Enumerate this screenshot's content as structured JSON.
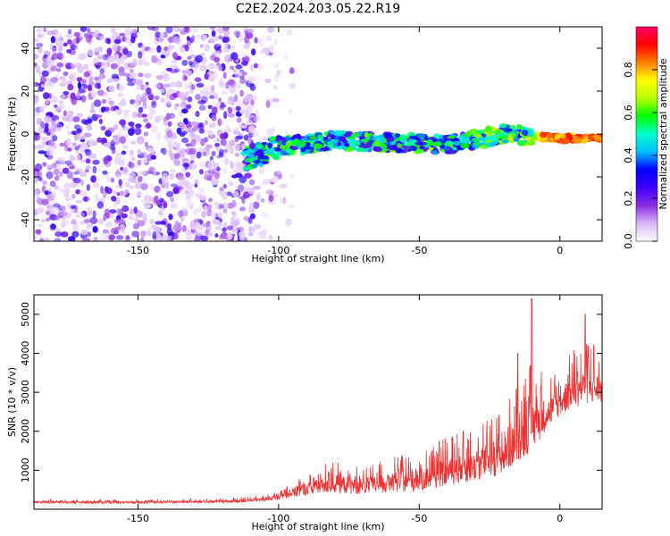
{
  "title": "C2E2.2024.203.05.22.R19",
  "chart_data": [
    {
      "type": "heatmap",
      "xlabel": "Height of straight line (km)",
      "ylabel": "Frequency (Hz)",
      "xlim": [
        -187,
        15
      ],
      "ylim": [
        -50,
        50
      ],
      "x_ticks": [
        -150,
        -100,
        -50,
        0
      ],
      "y_ticks": [
        -40,
        -20,
        0,
        20,
        40
      ],
      "colorbar": {
        "label": "Normalized spectral amplitude",
        "range": [
          0,
          1
        ],
        "ticks": [
          0.0,
          0.2,
          0.4,
          0.6,
          0.8
        ],
        "colors": [
          "#ffffff",
          "#d9b6f7",
          "#8a2be2",
          "#3f00ff",
          "#0000ff",
          "#00bfff",
          "#00ffcc",
          "#00ff00",
          "#b6ff00",
          "#ffff00",
          "#ff7f00",
          "#ff0000",
          "#ff0066"
        ]
      },
      "regions": [
        {
          "name": "noise",
          "x_range": [
            -187,
            -108
          ],
          "y_range": [
            -50,
            50
          ],
          "amplitude_range": [
            0.05,
            0.3
          ]
        },
        {
          "name": "sparse-noise",
          "x_range": [
            -108,
            -95
          ],
          "y_range": [
            -50,
            50
          ],
          "amplitude_range": [
            0.03,
            0.15
          ]
        },
        {
          "name": "signal-band",
          "x_range": [
            -112,
            15
          ],
          "amplitude_range": [
            0.2,
            0.95
          ],
          "center_freq": {
            "x": [
              -112,
              -100,
              -80,
              -60,
              -40,
              -20,
              -10,
              0,
              15
            ],
            "y": [
              -12,
              -6,
              -3,
              -4,
              -5,
              0,
              -1,
              -2,
              -2
            ]
          }
        }
      ]
    },
    {
      "type": "line",
      "xlabel": "Height of straight line (km)",
      "ylabel": "SNR (10 * v/v)",
      "xlim": [
        -187,
        15
      ],
      "ylim": [
        0,
        5500
      ],
      "x_ticks": [
        -150,
        -100,
        -50,
        0
      ],
      "y_ticks": [
        1000,
        2000,
        3000,
        4000,
        5000
      ],
      "color": "#ee3333",
      "envelope": {
        "x": [
          -187,
          -150,
          -120,
          -105,
          -100,
          -90,
          -80,
          -70,
          -60,
          -50,
          -40,
          -30,
          -20,
          -15,
          -10,
          -5,
          0,
          5,
          10,
          15
        ],
        "baseline": [
          150,
          150,
          160,
          200,
          250,
          350,
          400,
          380,
          420,
          450,
          600,
          700,
          900,
          1200,
          1500,
          2000,
          2400,
          2600,
          2700,
          2700
        ],
        "spread": [
          80,
          80,
          90,
          120,
          200,
          500,
          700,
          600,
          700,
          800,
          1000,
          1100,
          1300,
          1600,
          1800,
          1200,
          900,
          1200,
          1300,
          1000
        ]
      },
      "peaks": [
        {
          "x": -10,
          "y": 5400
        },
        {
          "x": 9,
          "y": 5000
        },
        {
          "x": -15,
          "y": 4000
        },
        {
          "x": 12,
          "y": 4200
        }
      ]
    }
  ]
}
